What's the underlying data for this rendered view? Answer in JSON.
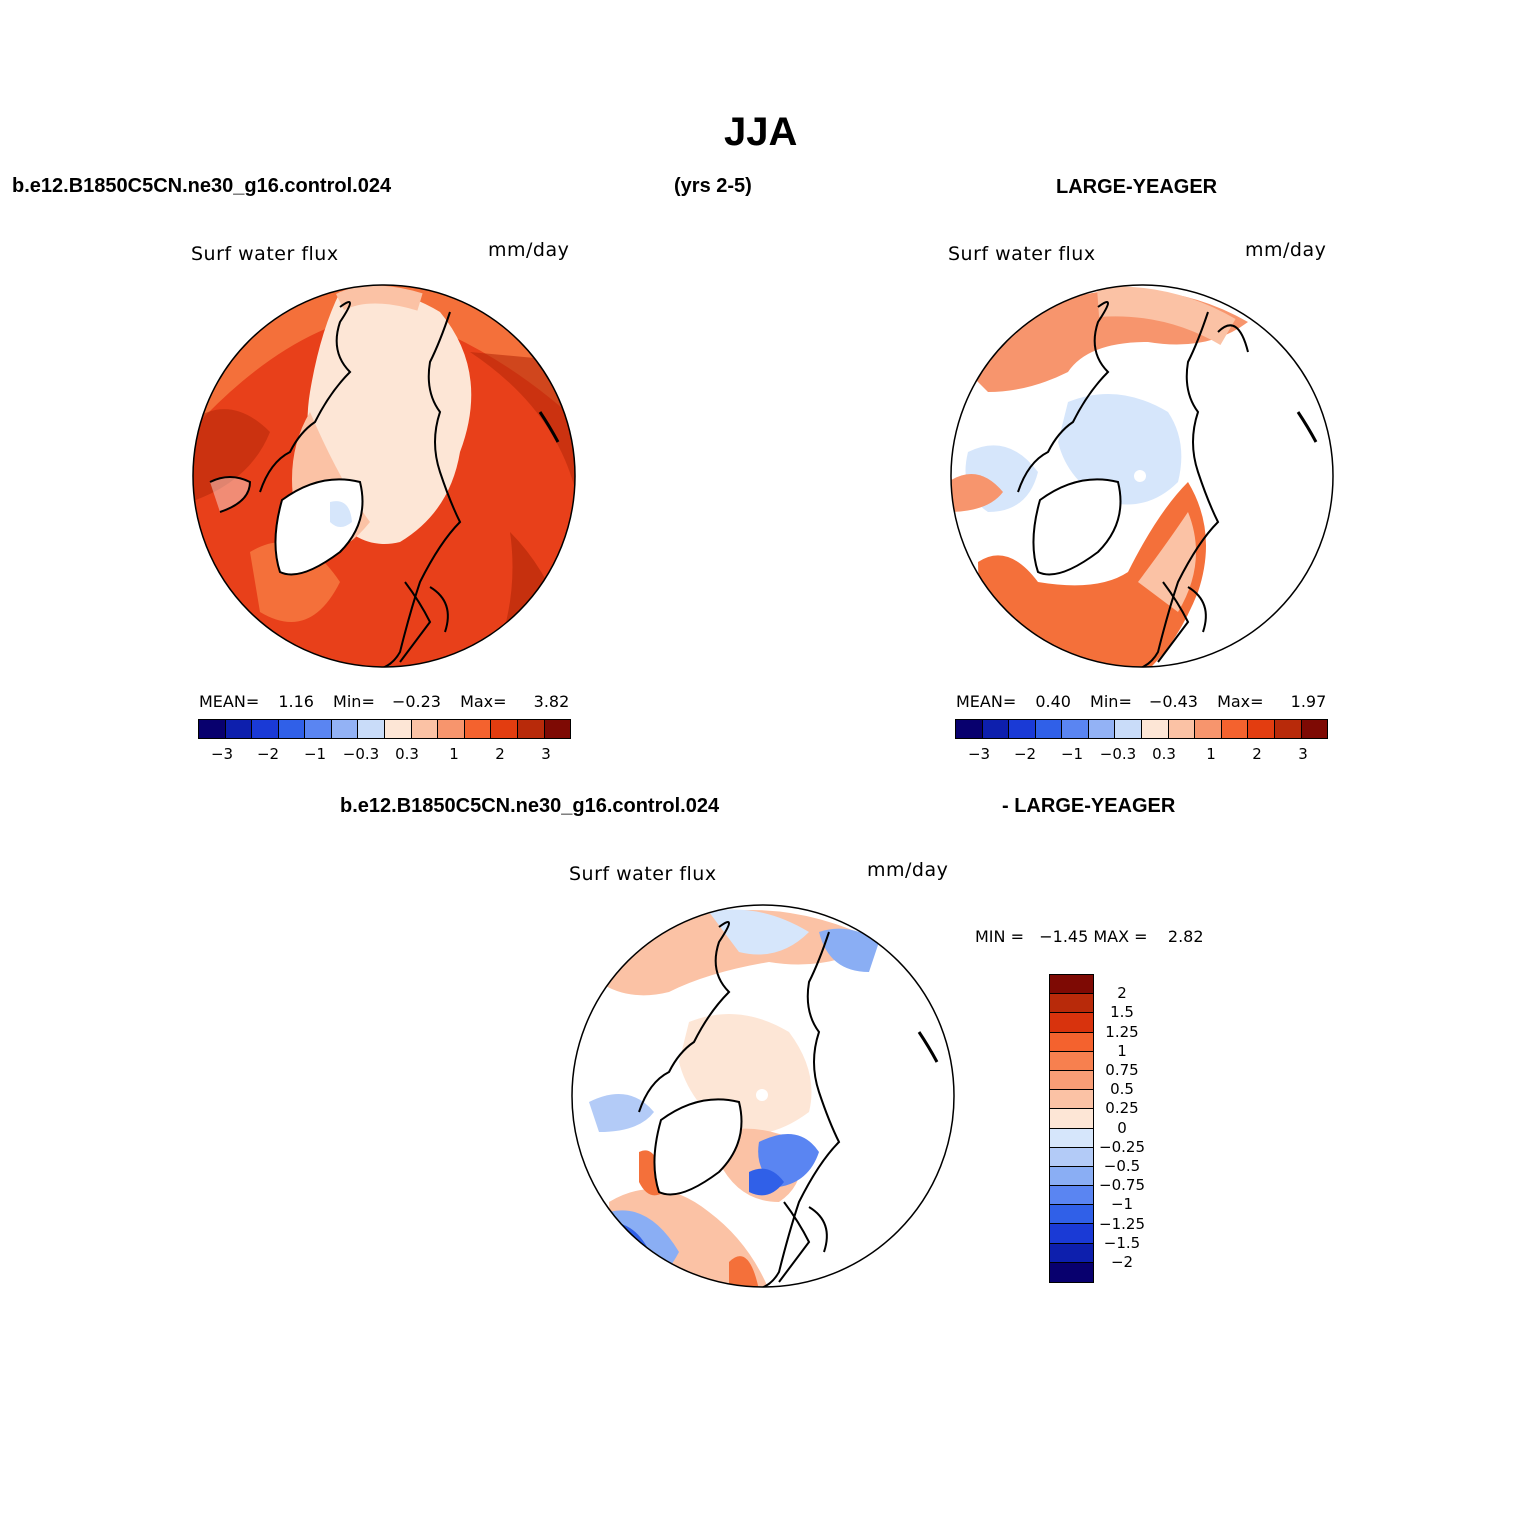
{
  "title": "JJA",
  "top_left_case": "b.e12.B1850C5CN.ne30_g16.control.024",
  "years": "(yrs 2-5)",
  "top_right_case": "LARGE-YEAGER",
  "bottom_case": "b.e12.B1850C5CN.ne30_g16.control.024",
  "bottom_case2": "- LARGE-YEAGER",
  "panels": {
    "left": {
      "variable": "Surf water flux",
      "units": "mm/day",
      "mean_label": "MEAN=",
      "mean": "1.16",
      "min_label": "Min=",
      "min": "−0.23",
      "max_label": "Max=",
      "max": "3.82"
    },
    "right": {
      "variable": "Surf water flux",
      "units": "mm/day",
      "mean_label": "MEAN=",
      "mean": "0.40",
      "min_label": "Min=",
      "min": "−0.43",
      "max_label": "Max=",
      "max": "1.97"
    },
    "diff": {
      "variable": "Surf water flux",
      "units": "mm/day",
      "minmax": "MIN =   −1.45 MAX =    2.82"
    }
  },
  "colorbar_top": {
    "colors": [
      "#08006e",
      "#0d1fad",
      "#1a3ad6",
      "#3060e8",
      "#5a85f2",
      "#93b2f5",
      "#c9dcf9",
      "#fde6d6",
      "#fbc2a5",
      "#f7956d",
      "#f4622e",
      "#e33d10",
      "#b82a0a",
      "#7e0a04"
    ],
    "ticks": [
      "−3",
      "−2",
      "−1",
      "−0.3",
      "0.3",
      "1",
      "2",
      "3"
    ]
  },
  "colorbar_diff": {
    "colors": [
      "#7e0a04",
      "#b82a0a",
      "#d8330d",
      "#f4622e",
      "#f7804f",
      "#f99e76",
      "#fbc2a5",
      "#fde6d6",
      "#d6e6fb",
      "#b3cbf7",
      "#8aaef4",
      "#5a85f2",
      "#3060e8",
      "#1a3ad6",
      "#0d1fad",
      "#08006e"
    ],
    "ticks": [
      "2",
      "1.5",
      "1.25",
      "1",
      "0.75",
      "0.5",
      "0.25",
      "0",
      "−0.25",
      "−0.5",
      "−0.75",
      "−1",
      "−1.25",
      "−1.5",
      "−2"
    ]
  },
  "map_palette": {
    "left_bg": "#e8401a",
    "left_inner": "#f4703a",
    "left_pole": "#fde6d6",
    "left_dark": "#b82a0a",
    "right_base": "#ffffff",
    "right_blue": "#d6e6fb",
    "right_warm": "#f4703a",
    "right_light": "#fbc2a5",
    "diff_base": "#ffffff",
    "diff_pole": "#fde6d6",
    "diff_blue": "#3060e8",
    "diff_lightblue": "#b3cbf7",
    "diff_warm": "#f4703a"
  }
}
